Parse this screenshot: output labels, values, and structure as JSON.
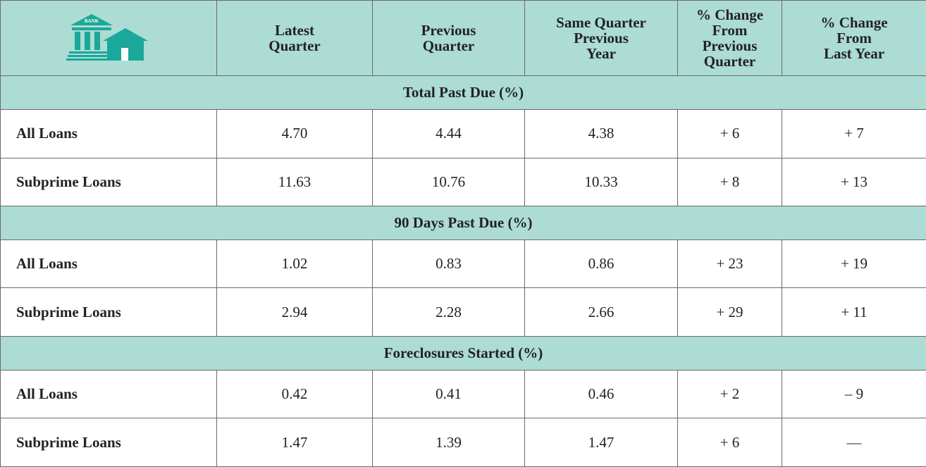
{
  "logo": {
    "label": "BANK"
  },
  "header": {
    "columns": [
      [
        "Latest",
        "Quarter"
      ],
      [
        "Previous",
        "Quarter"
      ],
      [
        "Same Quarter",
        "Previous",
        "Year"
      ],
      [
        "% Change",
        "From Previous",
        "Quarter"
      ],
      [
        "% Change",
        "From",
        "Last Year"
      ]
    ]
  },
  "sections": [
    {
      "title": "Total Past Due (%)",
      "rows": [
        {
          "label": "All Loans",
          "values": [
            "4.70",
            "4.44",
            "4.38",
            "+ 6",
            "+ 7"
          ]
        },
        {
          "label": "Subprime Loans",
          "values": [
            "11.63",
            "10.76",
            "10.33",
            "+ 8",
            "+ 13"
          ]
        }
      ]
    },
    {
      "title": "90 Days Past Due (%)",
      "rows": [
        {
          "label": "All Loans",
          "values": [
            "1.02",
            "0.83",
            "0.86",
            "+ 23",
            "+ 19"
          ]
        },
        {
          "label": "Subprime Loans",
          "values": [
            "2.94",
            "2.28",
            "2.66",
            "+ 29",
            "+ 11"
          ]
        }
      ]
    },
    {
      "title": "Foreclosures Started (%)",
      "rows": [
        {
          "label": "All Loans",
          "values": [
            "0.42",
            "0.41",
            "0.46",
            "+ 2",
            "– 9"
          ]
        },
        {
          "label": "Subprime Loans",
          "values": [
            "1.47",
            "1.39",
            "1.47",
            "+ 6",
            "—"
          ]
        }
      ]
    }
  ]
}
